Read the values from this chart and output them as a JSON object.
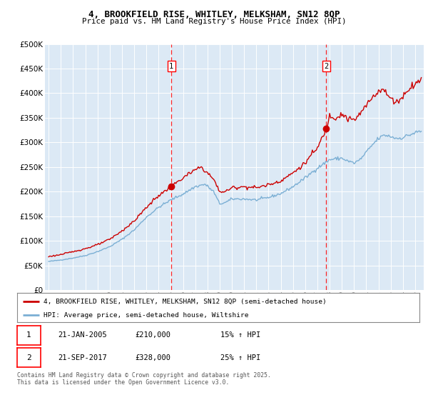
{
  "title1": "4, BROOKFIELD RISE, WHITLEY, MELKSHAM, SN12 8QP",
  "title2": "Price paid vs. HM Land Registry's House Price Index (HPI)",
  "bg_color": "#dce9f5",
  "red_line_color": "#cc0000",
  "blue_line_color": "#7bafd4",
  "sale1_date_label": "21-JAN-2005",
  "sale1_price": 210000,
  "sale1_hpi_pct": "15% ↑ HPI",
  "sale2_date_label": "21-SEP-2017",
  "sale2_price": 328000,
  "sale2_hpi_pct": "25% ↑ HPI",
  "sale1_x": 2005.05,
  "sale2_x": 2017.72,
  "ylim_min": 0,
  "ylim_max": 500000,
  "legend_line1": "4, BROOKFIELD RISE, WHITLEY, MELKSHAM, SN12 8QP (semi-detached house)",
  "legend_line2": "HPI: Average price, semi-detached house, Wiltshire",
  "footer": "Contains HM Land Registry data © Crown copyright and database right 2025.\nThis data is licensed under the Open Government Licence v3.0.",
  "xmin": 1994.7,
  "xmax": 2025.7
}
